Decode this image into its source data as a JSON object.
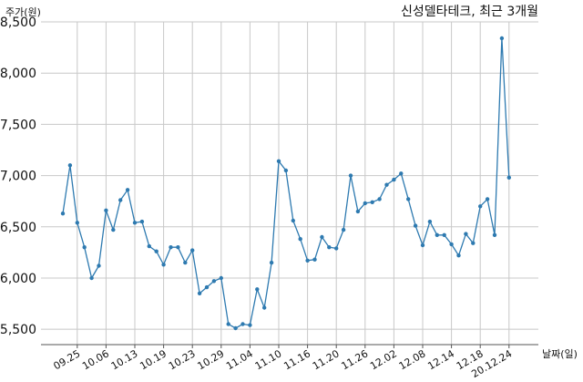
{
  "chart_data": {
    "type": "line",
    "title": "신성델타테크, 최근 3개월",
    "xlabel": "날짜(일)",
    "ylabel": "주가(원)",
    "ylim": [
      5350,
      8500
    ],
    "yticks": [
      5500,
      6000,
      6500,
      7000,
      7500,
      8000,
      8500
    ],
    "ytick_labels": [
      "5,500",
      "6,000",
      "6,500",
      "7,000",
      "7,500",
      "8,000",
      "8,500"
    ],
    "xtick_labels": [
      "09.25",
      "10.06",
      "10.13",
      "10.19",
      "10.23",
      "10.29",
      "11.04",
      "11.10",
      "11.16",
      "11.20",
      "11.26",
      "12.02",
      "12.08",
      "12.14",
      "12.18",
      "20.12.24"
    ],
    "xtick_index": [
      2,
      6,
      10,
      14,
      18,
      22,
      26,
      30,
      34,
      38,
      42,
      46,
      50,
      54,
      58,
      62
    ],
    "grid": true,
    "color": "#2e7ab0",
    "values": [
      6630,
      7100,
      6540,
      6300,
      6000,
      6120,
      6660,
      6470,
      6760,
      6860,
      6540,
      6550,
      6310,
      6260,
      6130,
      6300,
      6300,
      6150,
      6270,
      5850,
      5910,
      5970,
      6000,
      5550,
      5510,
      5550,
      5540,
      5890,
      5710,
      6150,
      7140,
      7050,
      6560,
      6380,
      6170,
      6180,
      6400,
      6300,
      6290,
      6470,
      7000,
      6650,
      6730,
      6740,
      6770,
      6910,
      6960,
      7020,
      6770,
      6510,
      6320,
      6550,
      6420,
      6420,
      6330,
      6220,
      6430,
      6340,
      6700,
      6770,
      6420,
      8340,
      6980
    ]
  }
}
